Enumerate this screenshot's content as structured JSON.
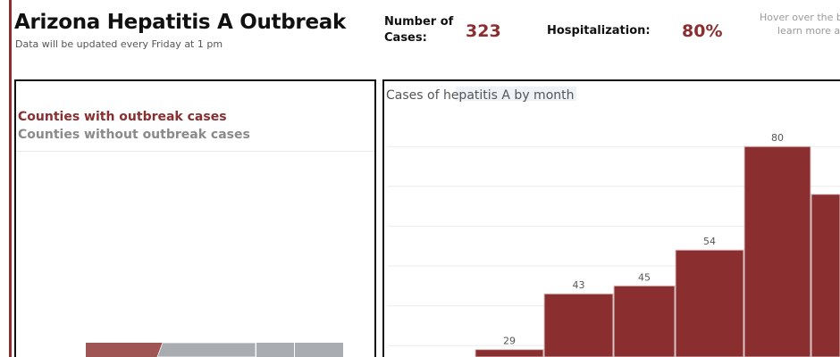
{
  "header": {
    "title": "Arizona Hepatitis A Outbreak",
    "subtitle": "Data will be updated every Friday at 1 pm"
  },
  "kpis": {
    "cases_label_1": "Number of",
    "cases_label_2": "Cases:",
    "cases_value": "323",
    "hosp_label": "Hospitalization:",
    "hosp_value": "80%"
  },
  "hint": {
    "line1": "Hover over the bu",
    "line2": "learn more ab"
  },
  "map": {
    "legend_with": "Counties with outbreak cases",
    "legend_without": "Counties without outbreak cases",
    "colors": {
      "with": "#a05555",
      "without": "#a9acb1"
    }
  },
  "chart_data": {
    "type": "bar",
    "title": "Cases of hepatitis A by month",
    "values": [
      29,
      43,
      45,
      54,
      80,
      68
    ],
    "labels": [
      "29",
      "43",
      "45",
      "54",
      "80",
      ""
    ],
    "gridlines": [
      30,
      40,
      50,
      60,
      70,
      80
    ],
    "color": "#8b2e30",
    "grid": true
  }
}
